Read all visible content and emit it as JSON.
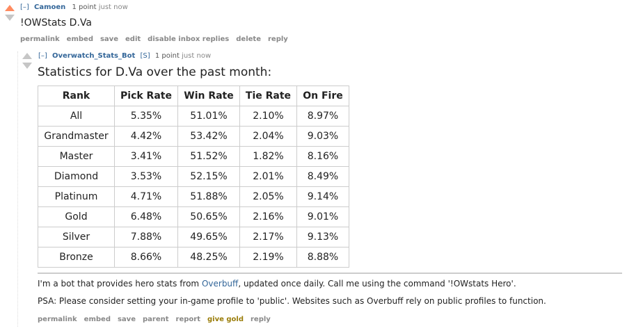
{
  "parent_comment": {
    "toggle": "[–]",
    "author": "Camoen",
    "score_points": "1 point",
    "time": "just now",
    "body": "!OWStats D.Va",
    "buttons": [
      "permalink",
      "embed",
      "save",
      "edit",
      "disable inbox replies",
      "delete",
      "reply"
    ]
  },
  "reply_comment": {
    "toggle": "[–]",
    "author": "Overwatch_Stats_Bot",
    "flag": "[S]",
    "score_points": "1 point",
    "time": "just now",
    "heading": "Statistics for D.Va over the past month:",
    "table": {
      "headers": [
        "Rank",
        "Pick Rate",
        "Win Rate",
        "Tie Rate",
        "On Fire"
      ],
      "rows": [
        [
          "All",
          "5.35%",
          "51.01%",
          "2.10%",
          "8.97%"
        ],
        [
          "Grandmaster",
          "4.42%",
          "53.42%",
          "2.04%",
          "9.03%"
        ],
        [
          "Master",
          "3.41%",
          "51.52%",
          "1.82%",
          "8.16%"
        ],
        [
          "Diamond",
          "3.53%",
          "52.15%",
          "2.01%",
          "8.49%"
        ],
        [
          "Platinum",
          "4.71%",
          "51.88%",
          "2.05%",
          "9.14%"
        ],
        [
          "Gold",
          "6.48%",
          "50.65%",
          "2.16%",
          "9.01%"
        ],
        [
          "Silver",
          "7.88%",
          "49.65%",
          "2.17%",
          "9.13%"
        ],
        [
          "Bronze",
          "8.66%",
          "48.25%",
          "2.19%",
          "8.88%"
        ]
      ]
    },
    "note1": {
      "before": "I'm a bot that provides hero stats from ",
      "link": "Overbuff",
      "after": ", updated once daily. Call me using the command '!OWstats Hero'."
    },
    "note2": "PSA: Please consider setting your in-game profile to 'public'. Websites such as Overbuff rely on public profiles to function.",
    "buttons": [
      "permalink",
      "embed",
      "save",
      "parent",
      "report",
      "give gold",
      "reply"
    ]
  },
  "colors": {
    "upvoted_arrow": "#ff8b60",
    "neutral_arrow": "#c6c6c6",
    "link_blue": "#336699",
    "gold": "#9a7d0a"
  }
}
